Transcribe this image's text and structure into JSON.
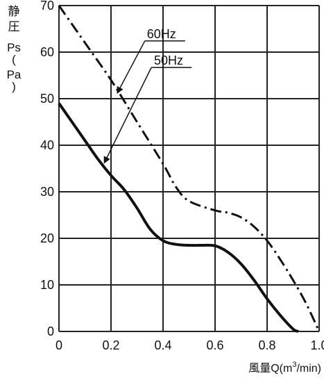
{
  "chart_data": {
    "type": "line",
    "title": "",
    "xlabel": "風量Q(m",
    "xlabel_sup": "3",
    "xlabel_suffix": "/min)",
    "ylabel_lines": [
      "静",
      "圧",
      "Ps",
      "(",
      "Pa",
      ")"
    ],
    "xlim": [
      0,
      1.0
    ],
    "ylim": [
      0,
      70
    ],
    "x_ticks": [
      0,
      0.2,
      0.4,
      0.6,
      0.8,
      1.0
    ],
    "x_tick_labels": [
      "0",
      "0.2",
      "0.4",
      "0.6",
      "0.8",
      "1.0"
    ],
    "y_ticks": [
      0,
      10,
      20,
      30,
      40,
      50,
      60,
      70
    ],
    "y_tick_labels": [
      "0",
      "10",
      "20",
      "30",
      "40",
      "50",
      "60",
      "70"
    ],
    "grid": true,
    "series": [
      {
        "name": "60Hz",
        "style": "dash-dot",
        "color": "#111111",
        "x": [
          0,
          0.1,
          0.2,
          0.3,
          0.4,
          0.45,
          0.5,
          0.6,
          0.65,
          0.7,
          0.75,
          0.8,
          0.85,
          0.9,
          0.95,
          1.0
        ],
        "y": [
          70,
          62,
          54,
          45,
          36,
          31,
          28,
          26,
          25.5,
          24.5,
          22.5,
          19.5,
          15.5,
          11,
          6,
          0
        ]
      },
      {
        "name": "50Hz",
        "style": "solid",
        "color": "#111111",
        "x": [
          0,
          0.05,
          0.1,
          0.15,
          0.2,
          0.25,
          0.3,
          0.35,
          0.4,
          0.45,
          0.5,
          0.55,
          0.6,
          0.65,
          0.7,
          0.75,
          0.8,
          0.85,
          0.9,
          0.92
        ],
        "y": [
          49,
          45,
          41,
          37,
          33.5,
          30.5,
          26.5,
          22,
          19.5,
          18.7,
          18.5,
          18.5,
          18.4,
          17,
          14.5,
          11,
          7,
          3.5,
          0.5,
          0
        ]
      }
    ]
  }
}
